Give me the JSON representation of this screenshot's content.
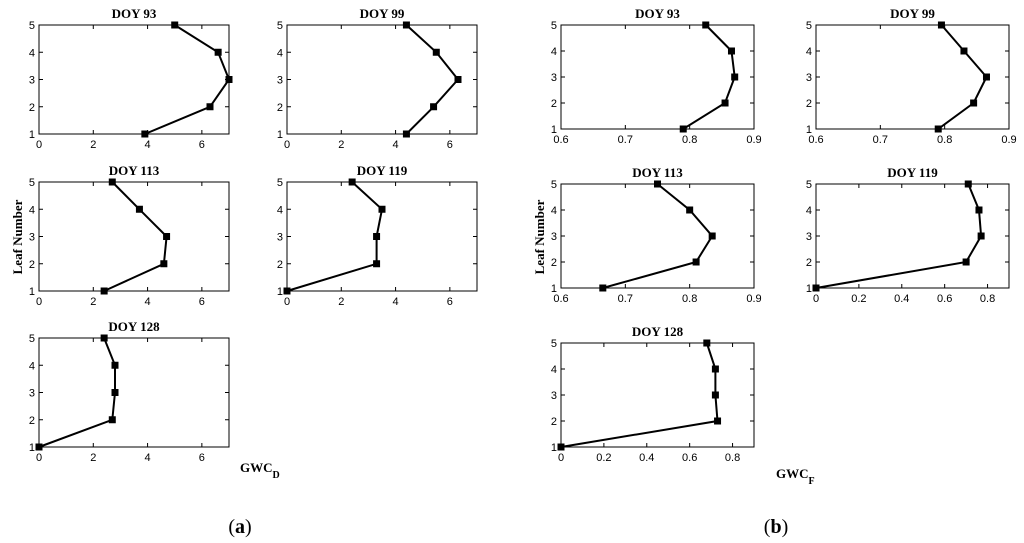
{
  "figure": {
    "panel_a_label_open": "(",
    "panel_a_letter": "a",
    "panel_a_label_close": ")",
    "panel_b_label_open": "(",
    "panel_b_letter": "b",
    "panel_b_label_close": ")",
    "ylabel": "Leaf Number",
    "panel_a_xlabel_main": "GWC",
    "panel_a_xlabel_sub": "D",
    "panel_b_xlabel_main": "GWC",
    "panel_b_xlabel_sub": "F"
  },
  "chart_data": [
    {
      "id": "a1",
      "panel": "a",
      "type": "line",
      "title": "DOY 93",
      "x": [
        3.9,
        6.3,
        7.0,
        6.6,
        5.0
      ],
      "y": [
        1,
        2,
        3,
        4,
        5
      ],
      "xlim": [
        0,
        7
      ],
      "ylim": [
        1,
        5
      ],
      "xticks": [
        "0",
        "2",
        "4",
        "6"
      ],
      "yticks": [
        "1",
        "2",
        "3",
        "4",
        "5"
      ]
    },
    {
      "id": "a2",
      "panel": "a",
      "type": "line",
      "title": "DOY 99",
      "x": [
        4.4,
        5.4,
        6.3,
        5.5,
        4.4
      ],
      "y": [
        1,
        2,
        3,
        4,
        5
      ],
      "xlim": [
        0,
        7
      ],
      "ylim": [
        1,
        5
      ],
      "xticks": [
        "0",
        "2",
        "4",
        "6"
      ],
      "yticks": [
        "1",
        "2",
        "3",
        "4",
        "5"
      ]
    },
    {
      "id": "a3",
      "panel": "a",
      "type": "line",
      "title": "DOY 113",
      "x": [
        2.4,
        4.6,
        4.7,
        3.7,
        2.7
      ],
      "y": [
        1,
        2,
        3,
        4,
        5
      ],
      "xlim": [
        0,
        7
      ],
      "ylim": [
        1,
        5
      ],
      "xticks": [
        "0",
        "2",
        "4",
        "6"
      ],
      "yticks": [
        "1",
        "2",
        "3",
        "4",
        "5"
      ]
    },
    {
      "id": "a4",
      "panel": "a",
      "type": "line",
      "title": "DOY 119",
      "x": [
        0.0,
        3.3,
        3.3,
        3.5,
        2.4
      ],
      "y": [
        1,
        2,
        3,
        4,
        5
      ],
      "xlim": [
        0,
        7
      ],
      "ylim": [
        1,
        5
      ],
      "xticks": [
        "0",
        "2",
        "4",
        "6"
      ],
      "yticks": [
        "1",
        "2",
        "3",
        "4",
        "5"
      ]
    },
    {
      "id": "a5",
      "panel": "a",
      "type": "line",
      "title": "DOY 128",
      "x": [
        0.0,
        2.7,
        2.8,
        2.8,
        2.4
      ],
      "y": [
        1,
        2,
        3,
        4,
        5
      ],
      "xlim": [
        0,
        7
      ],
      "ylim": [
        1,
        5
      ],
      "xticks": [
        "0",
        "2",
        "4",
        "6"
      ],
      "yticks": [
        "1",
        "2",
        "3",
        "4",
        "5"
      ]
    },
    {
      "id": "b1",
      "panel": "b",
      "type": "line",
      "title": "DOY 93",
      "x": [
        0.79,
        0.855,
        0.87,
        0.865,
        0.825
      ],
      "y": [
        1,
        2,
        3,
        4,
        5
      ],
      "xlim": [
        0.6,
        0.9
      ],
      "ylim": [
        1,
        5
      ],
      "xticks": [
        "0.6",
        "0.7",
        "0.8",
        "0.9"
      ],
      "yticks": [
        "1",
        "2",
        "3",
        "4",
        "5"
      ]
    },
    {
      "id": "b2",
      "panel": "b",
      "type": "line",
      "title": "DOY 99",
      "x": [
        0.79,
        0.845,
        0.865,
        0.83,
        0.795
      ],
      "y": [
        1,
        2,
        3,
        4,
        5
      ],
      "xlim": [
        0.6,
        0.9
      ],
      "ylim": [
        1,
        5
      ],
      "xticks": [
        "0.6",
        "0.7",
        "0.8",
        "0.9"
      ],
      "yticks": [
        "1",
        "2",
        "3",
        "4",
        "5"
      ]
    },
    {
      "id": "b3",
      "panel": "b",
      "type": "line",
      "title": "DOY 113",
      "x": [
        0.665,
        0.81,
        0.835,
        0.8,
        0.75
      ],
      "y": [
        1,
        2,
        3,
        4,
        5
      ],
      "xlim": [
        0.6,
        0.9
      ],
      "ylim": [
        1,
        5
      ],
      "xticks": [
        "0.6",
        "0.7",
        "0.8",
        "0.9"
      ],
      "yticks": [
        "1",
        "2",
        "3",
        "4",
        "5"
      ]
    },
    {
      "id": "b4",
      "panel": "b",
      "type": "line",
      "title": "DOY 119",
      "x": [
        0.0,
        0.7,
        0.77,
        0.76,
        0.71
      ],
      "y": [
        1,
        2,
        3,
        4,
        5
      ],
      "xlim": [
        0,
        0.9
      ],
      "ylim": [
        1,
        5
      ],
      "xticks": [
        "0",
        "0.2",
        "0.4",
        "0.6",
        "0.8"
      ],
      "yticks": [
        "1",
        "2",
        "3",
        "4",
        "5"
      ]
    },
    {
      "id": "b5",
      "panel": "b",
      "type": "line",
      "title": "DOY 128",
      "x": [
        0.0,
        0.73,
        0.72,
        0.72,
        0.68
      ],
      "y": [
        1,
        2,
        3,
        4,
        5
      ],
      "xlim": [
        0,
        0.9
      ],
      "ylim": [
        1,
        5
      ],
      "xticks": [
        "0",
        "0.2",
        "0.4",
        "0.6",
        "0.8"
      ],
      "yticks": [
        "1",
        "2",
        "3",
        "4",
        "5"
      ]
    }
  ]
}
